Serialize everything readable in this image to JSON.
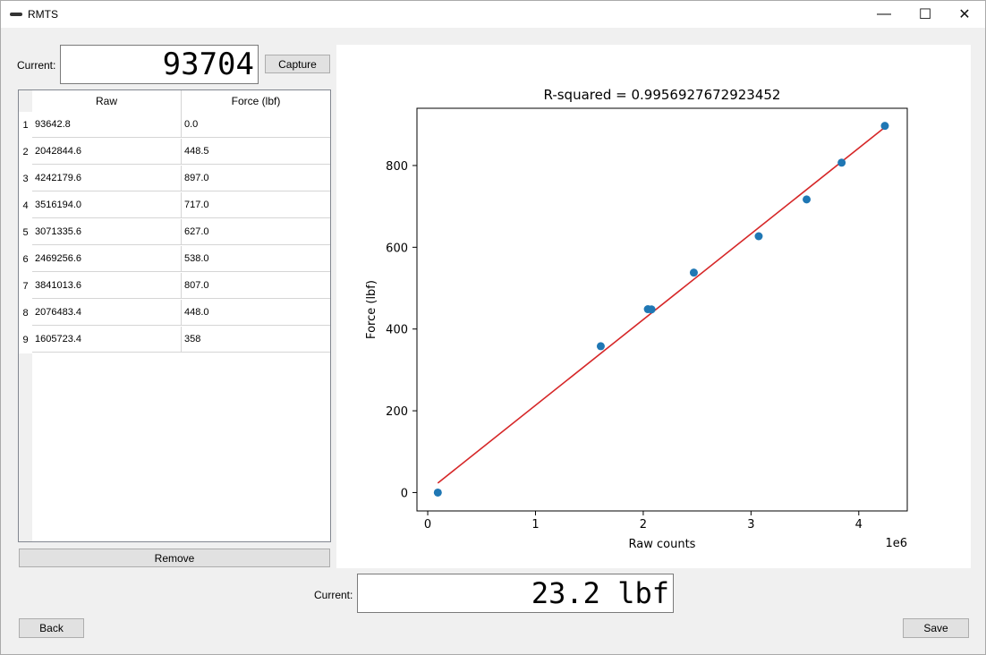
{
  "window": {
    "title": "RMTS"
  },
  "capture_panel": {
    "current_label": "Current:",
    "current_value": "93704",
    "capture_label": "Capture"
  },
  "table": {
    "headers": [
      "Raw",
      "Force (lbf)"
    ],
    "rows": [
      {
        "num": "1",
        "raw": "93642.8",
        "force": "0.0"
      },
      {
        "num": "2",
        "raw": "2042844.6",
        "force": "448.5"
      },
      {
        "num": "3",
        "raw": "4242179.6",
        "force": "897.0"
      },
      {
        "num": "4",
        "raw": "3516194.0",
        "force": "717.0"
      },
      {
        "num": "5",
        "raw": "3071335.6",
        "force": "627.0"
      },
      {
        "num": "6",
        "raw": "2469256.6",
        "force": "538.0"
      },
      {
        "num": "7",
        "raw": "3841013.6",
        "force": "807.0"
      },
      {
        "num": "8",
        "raw": "2076483.4",
        "force": "448.0"
      },
      {
        "num": "9",
        "raw": "1605723.4",
        "force": "358"
      }
    ]
  },
  "remove_label": "Remove",
  "output_panel": {
    "current_label": "Current:",
    "current_value": "23.2 lbf"
  },
  "back_label": "Back",
  "save_label": "Save",
  "chart_data": {
    "type": "scatter",
    "title": "R-squared = 0.9956927672923452",
    "xlabel": "Raw counts",
    "ylabel": "Force (lbf)",
    "x_offset_label": "1e6",
    "xlim": [
      -0.1,
      4.45
    ],
    "ylim": [
      -45,
      940
    ],
    "xticks": [
      0,
      1,
      2,
      3,
      4
    ],
    "yticks": [
      0,
      200,
      400,
      600,
      800
    ],
    "points_color": "#1f77b4",
    "fit_color": "#d62728",
    "series": [
      {
        "name": "measurements",
        "x": [
          0.0936428,
          2.0428446,
          4.2421796,
          3.516194,
          3.0713356,
          2.4692566,
          3.8410136,
          2.0764834,
          1.6057234
        ],
        "y": [
          0.0,
          448.5,
          897.0,
          717.0,
          627.0,
          538.0,
          807.0,
          448.0,
          358
        ]
      },
      {
        "name": "fit",
        "x": [
          0.0936428,
          4.2421796
        ],
        "y": [
          23.2,
          893.5
        ]
      }
    ]
  }
}
